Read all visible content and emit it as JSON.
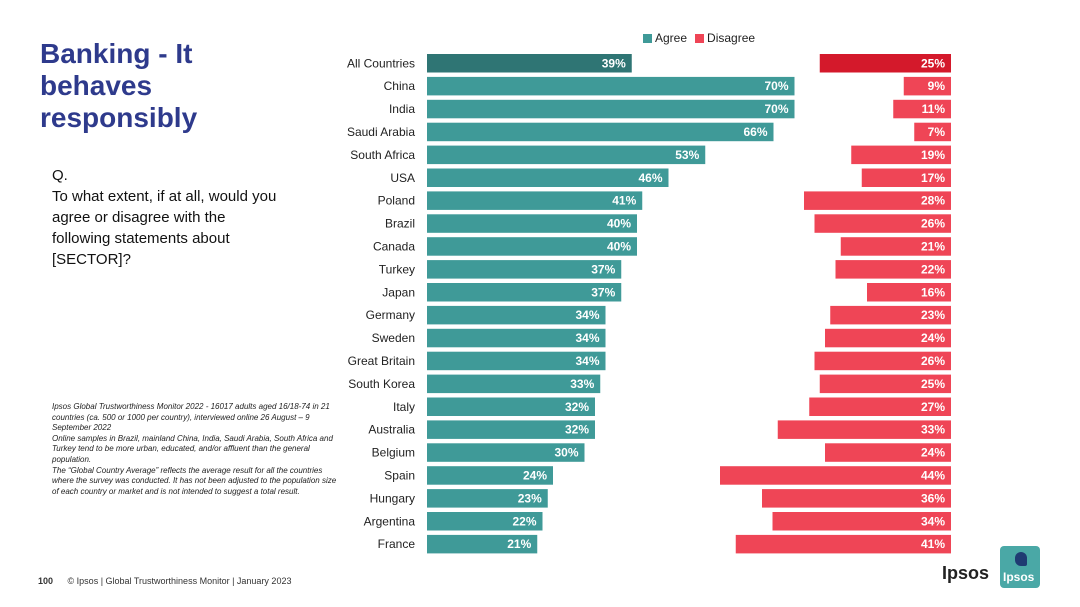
{
  "title": "Banking - It behaves responsibly",
  "question": {
    "prefix": "Q.",
    "text": "To what extent, if at all, would you agree or disagree with the following statements about [SECTOR]?"
  },
  "notes": [
    "Ipsos Global Trustworthiness Monitor 2022 - 16017 adults aged 16/18-74 in 21 countries (ca. 500 or 1000 per country), interviewed online 26 August – 9 September 2022",
    "Online samples in Brazil, mainland China, India, Saudi Arabia, South Africa and Turkey tend to be more urban, educated, and/or affluent than the general population.",
    "The “Global Country Average” reflects the average result for all the countries where the survey was conducted. It has not been adjusted to the population size of each country or market and is not intended to suggest a total result."
  ],
  "footer": {
    "page": "100",
    "text": "© Ipsos | Global Trustworthiness Monitor | January 2023"
  },
  "logo": {
    "text": "Ipsos",
    "box_text": "Ipsos"
  },
  "colors": {
    "agree": "#3f9a98",
    "agree_total": "#2f7574",
    "disagree": "#ef4556",
    "disagree_total": "#d4192b",
    "title": "#2e3a8c"
  },
  "chart_data": {
    "type": "bar",
    "orientation": "horizontal",
    "legend": [
      "Agree",
      "Disagree"
    ],
    "legend_placement": "top",
    "categories": [
      "All Countries",
      "China",
      "India",
      "Saudi Arabia",
      "South Africa",
      "USA",
      "Poland",
      "Brazil",
      "Canada",
      "Turkey",
      "Japan",
      "Germany",
      "Sweden",
      "Great Britain",
      "South Korea",
      "Italy",
      "Australia",
      "Belgium",
      "Spain",
      "Hungary",
      "Argentina",
      "France"
    ],
    "series": [
      {
        "name": "Agree",
        "values": [
          39,
          70,
          70,
          66,
          53,
          46,
          41,
          40,
          40,
          37,
          37,
          34,
          34,
          34,
          33,
          32,
          32,
          30,
          24,
          23,
          22,
          21
        ]
      },
      {
        "name": "Disagree",
        "values": [
          25,
          9,
          11,
          7,
          19,
          17,
          28,
          26,
          21,
          22,
          16,
          23,
          24,
          26,
          25,
          27,
          33,
          24,
          44,
          36,
          34,
          41
        ]
      }
    ],
    "value_suffix": "%"
  }
}
